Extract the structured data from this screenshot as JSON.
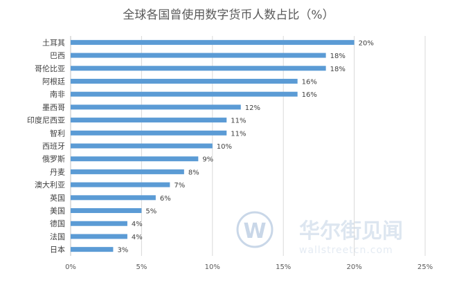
{
  "chart_data": {
    "type": "bar",
    "orientation": "horizontal",
    "title": "全球各国曾使用数字货币人数占比（%）",
    "categories": [
      "土耳其",
      "巴西",
      "哥伦比亚",
      "阿根廷",
      "南非",
      "墨西哥",
      "印度尼西亚",
      "智利",
      "西班牙",
      "俄罗斯",
      "丹麦",
      "澳大利亚",
      "英国",
      "美国",
      "德国",
      "法国",
      "日本"
    ],
    "values": [
      20,
      18,
      18,
      16,
      16,
      12,
      11,
      11,
      10,
      9,
      8,
      7,
      6,
      5,
      4,
      4,
      3
    ],
    "value_labels": [
      "20%",
      "18%",
      "18%",
      "16%",
      "16%",
      "12%",
      "11%",
      "11%",
      "10%",
      "9%",
      "8%",
      "7%",
      "6%",
      "5%",
      "4%",
      "4%",
      "3%"
    ],
    "xticks": [
      0,
      5,
      10,
      15,
      20,
      25
    ],
    "xtick_labels": [
      "0%",
      "5%",
      "10%",
      "15%",
      "20%",
      "25%"
    ],
    "xlim": [
      0,
      25
    ],
    "grid": "vertical",
    "bar_color": "#5b9bd5"
  },
  "watermark": {
    "brand": "华尔街见闻",
    "url": "wallstreetcn.com",
    "logo_letter": "W",
    "logo_color": "#c9d7e8"
  }
}
